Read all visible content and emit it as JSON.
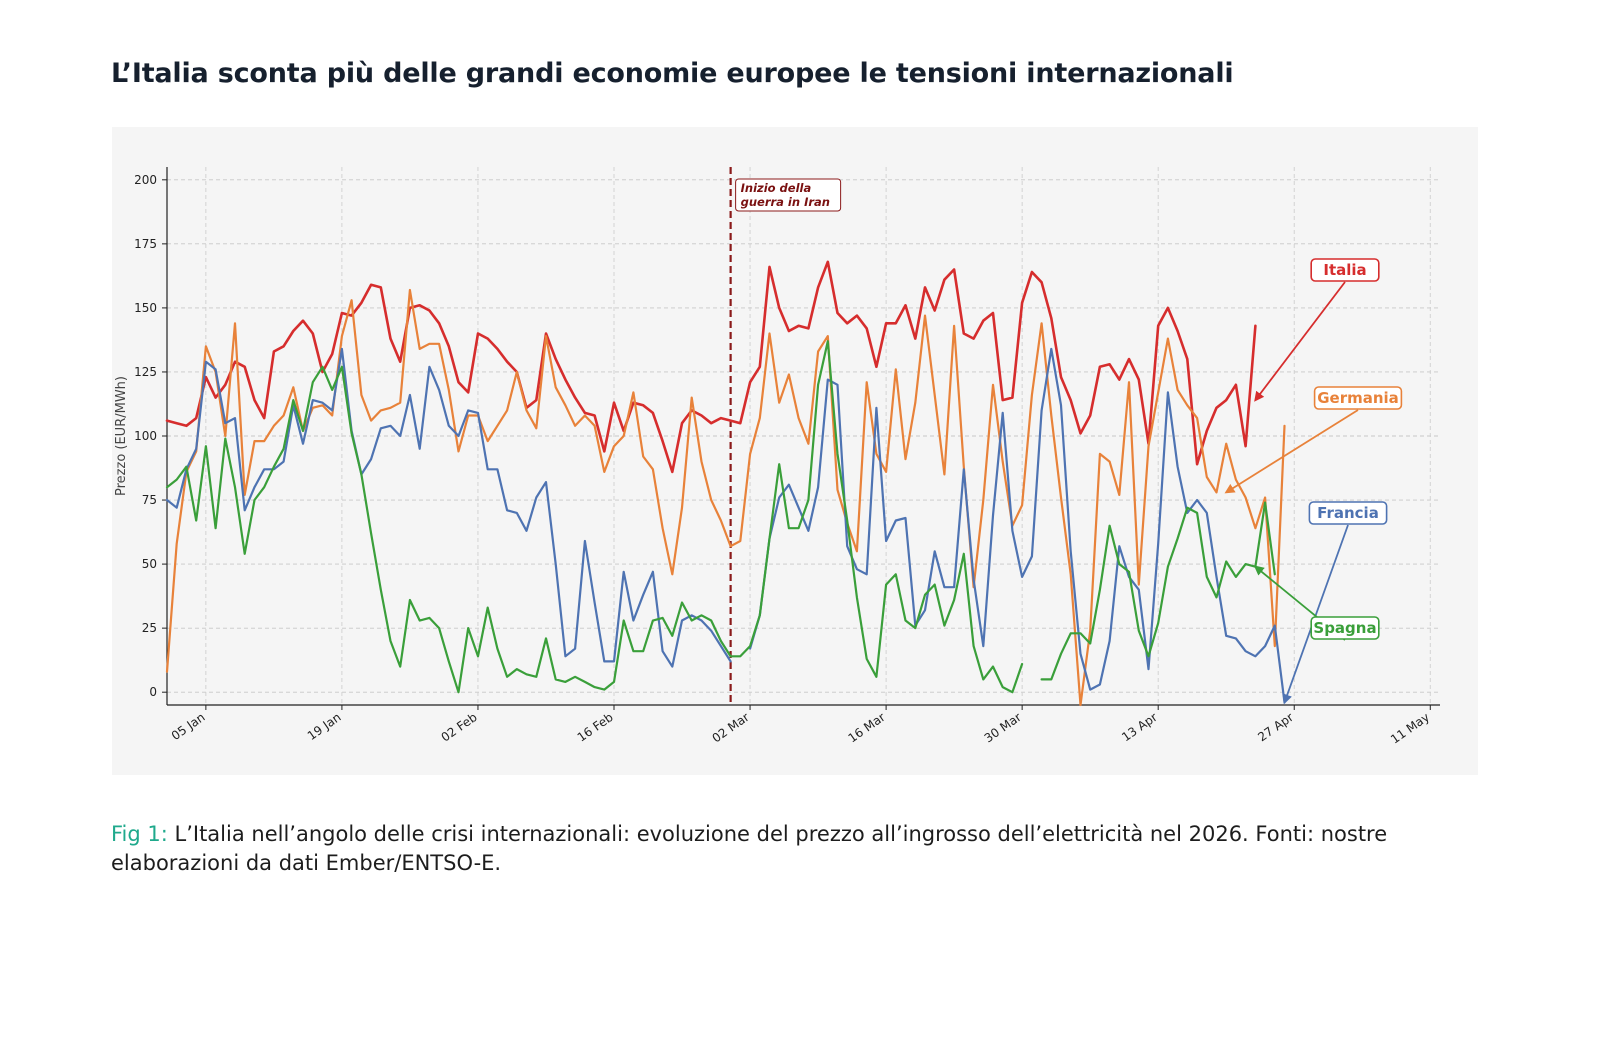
{
  "title": "L’Italia sconta più delle grandi economie europee le tensioni internazionali",
  "caption": {
    "lead": "Fig 1:",
    "text": " L’Italia nell’angolo delle crisi internazionali: evoluzione del prezzo all’ingrosso dell’elettricità nel 2026. Fonti: nostre elaborazioni da dati Ember/ENTSO-E."
  },
  "chart_data": {
    "type": "line",
    "title": "",
    "xlabel": "",
    "ylabel": "Prezzo (EUR/MWh)",
    "x_ticks": [
      "05 Jan",
      "19 Jan",
      "02 Feb",
      "16 Feb",
      "02 Mar",
      "16 Mar",
      "30 Mar",
      "13 Apr",
      "27 Apr",
      "11 May"
    ],
    "y_ticks": [
      0,
      25,
      50,
      75,
      100,
      125,
      150,
      175,
      200
    ],
    "xlim": [
      "2026-01-01",
      "2026-05-12"
    ],
    "ylim": [
      -5,
      205
    ],
    "grid": true,
    "legend": "inline labels with arrows, right side",
    "annotation": {
      "date": "2026-02-28",
      "text_line1": "Inizio della",
      "text_line2": "guerra in Iran",
      "color": "#8b1a1a"
    },
    "series": [
      {
        "name": "Italia",
        "color": "#d62d2d",
        "start_date": "2026-01-01",
        "values": [
          106,
          105,
          104,
          107,
          123,
          115,
          120,
          129,
          127,
          114,
          107,
          133,
          135,
          141,
          145,
          140,
          125,
          132,
          148,
          147,
          152,
          159,
          158,
          138,
          129,
          150,
          151,
          149,
          144,
          135,
          121,
          117,
          140,
          138,
          134,
          129,
          125,
          111,
          114,
          140,
          130,
          122,
          115,
          109,
          108,
          94,
          113,
          102,
          113,
          112,
          109,
          98,
          86,
          105,
          110,
          108,
          105,
          107,
          106,
          105,
          121,
          127,
          166,
          150,
          141,
          143,
          142,
          158,
          168,
          148,
          144,
          147,
          142,
          127,
          144,
          144,
          151,
          138,
          158,
          149,
          161,
          165,
          140,
          138,
          145,
          148,
          114,
          115,
          152,
          164,
          160,
          146,
          123,
          114,
          101,
          108,
          127,
          128,
          122,
          130,
          122,
          97,
          143,
          150,
          141,
          130,
          89,
          102,
          111,
          114,
          120,
          96,
          143
        ],
        "gaps": []
      },
      {
        "name": "Germania",
        "color": "#e8823a",
        "start_date": "2026-01-01",
        "values": [
          8,
          58,
          86,
          94,
          135,
          125,
          100,
          144,
          77,
          98,
          98,
          104,
          108,
          119,
          102,
          111,
          112,
          108,
          139,
          153,
          116,
          106,
          110,
          111,
          113,
          157,
          134,
          136,
          136,
          118,
          94,
          108,
          108,
          98,
          104,
          110,
          125,
          110,
          103,
          139,
          119,
          112,
          104,
          108,
          104,
          86,
          96,
          100,
          117,
          92,
          87,
          64,
          46,
          72,
          115,
          90,
          75,
          67,
          57,
          59,
          93,
          107,
          140,
          113,
          124,
          107,
          97,
          133,
          139,
          79,
          66,
          55,
          121,
          93,
          86,
          126,
          91,
          113,
          147,
          116,
          85,
          143,
          88,
          41,
          75,
          120,
          90,
          65,
          73,
          116,
          144,
          108,
          76,
          46,
          -5,
          24,
          93,
          90,
          77,
          121,
          42,
          96,
          117,
          138,
          118,
          112,
          107,
          84,
          78,
          97,
          83,
          76,
          64,
          76,
          18,
          104
        ],
        "gaps": []
      },
      {
        "name": "Francia",
        "color": "#4e73b2",
        "start_date": "2026-01-01",
        "values": [
          75,
          72,
          87,
          95,
          129,
          126,
          105,
          107,
          71,
          80,
          87,
          87,
          90,
          112,
          97,
          114,
          113,
          110,
          134,
          102,
          85,
          91,
          103,
          104,
          100,
          116,
          95,
          127,
          118,
          104,
          100,
          110,
          109,
          87,
          87,
          71,
          70,
          63,
          76,
          82,
          50,
          14,
          17,
          59,
          35,
          12,
          12,
          47,
          28,
          38,
          47,
          16,
          10,
          28,
          30,
          28,
          24,
          18,
          12,
          null,
          17,
          30,
          60,
          76,
          81,
          72,
          63,
          80,
          122,
          120,
          57,
          48,
          46,
          111,
          59,
          67,
          68,
          26,
          32,
          55,
          41,
          41,
          87,
          44,
          18,
          69,
          109,
          63,
          45,
          53,
          110,
          134,
          112,
          55,
          15,
          1,
          3,
          20,
          57,
          45,
          40,
          9,
          58,
          117,
          88,
          70,
          75,
          70,
          45,
          22,
          21,
          16,
          14,
          18,
          26,
          -4
        ],
        "gaps": [
          59
        ]
      },
      {
        "name": "Spagna",
        "color": "#3a9f3a",
        "start_date": "2026-01-01",
        "values": [
          80,
          83,
          88,
          67,
          96,
          64,
          99,
          80,
          54,
          75,
          80,
          88,
          95,
          114,
          102,
          121,
          127,
          118,
          127,
          101,
          85,
          62,
          40,
          20,
          10,
          36,
          28,
          29,
          25,
          12,
          0,
          25,
          14,
          33,
          17,
          6,
          9,
          7,
          6,
          21,
          5,
          4,
          6,
          4,
          2,
          1,
          4,
          28,
          16,
          16,
          28,
          29,
          22,
          35,
          28,
          30,
          28,
          20,
          14,
          14,
          18,
          30,
          60,
          89,
          64,
          64,
          75,
          120,
          137,
          93,
          67,
          37,
          13,
          6,
          42,
          46,
          28,
          25,
          38,
          42,
          26,
          36,
          54,
          18,
          5,
          10,
          2,
          0,
          11,
          null,
          5,
          5,
          15,
          23,
          23,
          19,
          40,
          65,
          50,
          47,
          24,
          14,
          27,
          49,
          60,
          72,
          70,
          45,
          37,
          51,
          45,
          50,
          49,
          74,
          46
        ],
        "gaps": [
          89
        ]
      }
    ],
    "series_labels": [
      {
        "series": "Italia",
        "text": "Italia"
      },
      {
        "series": "Germania",
        "text": "Germania"
      },
      {
        "series": "Francia",
        "text": "Francia"
      },
      {
        "series": "Spagna",
        "text": "Spagna"
      }
    ]
  }
}
